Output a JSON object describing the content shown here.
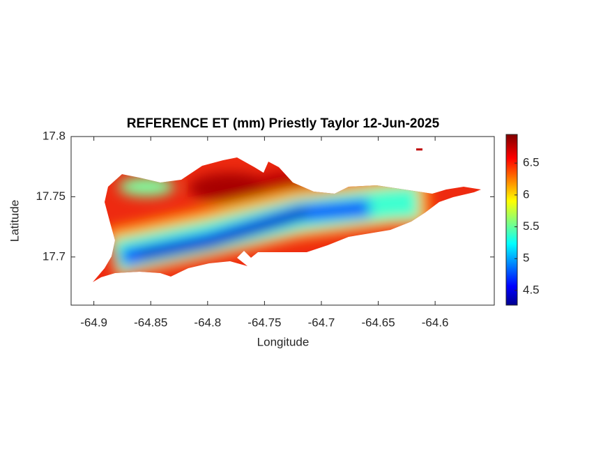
{
  "chart_data": {
    "type": "heatmap",
    "title": "REFERENCE ET (mm) Priestly Taylor 12-Jun-2025",
    "x_label": "Longitude",
    "y_label": "Latitude",
    "xlim": [
      -64.92,
      -64.548
    ],
    "xticks": [
      -64.9,
      -64.85,
      -64.8,
      -64.75,
      -64.7,
      -64.65,
      -64.6
    ],
    "ylim": [
      17.66,
      17.8
    ],
    "yticks": [
      17.7,
      17.75,
      17.8
    ],
    "colormap": "jet",
    "clim": [
      4.27,
      6.95
    ],
    "cticks": [
      4.5,
      5,
      5.5,
      6,
      6.5
    ]
  }
}
